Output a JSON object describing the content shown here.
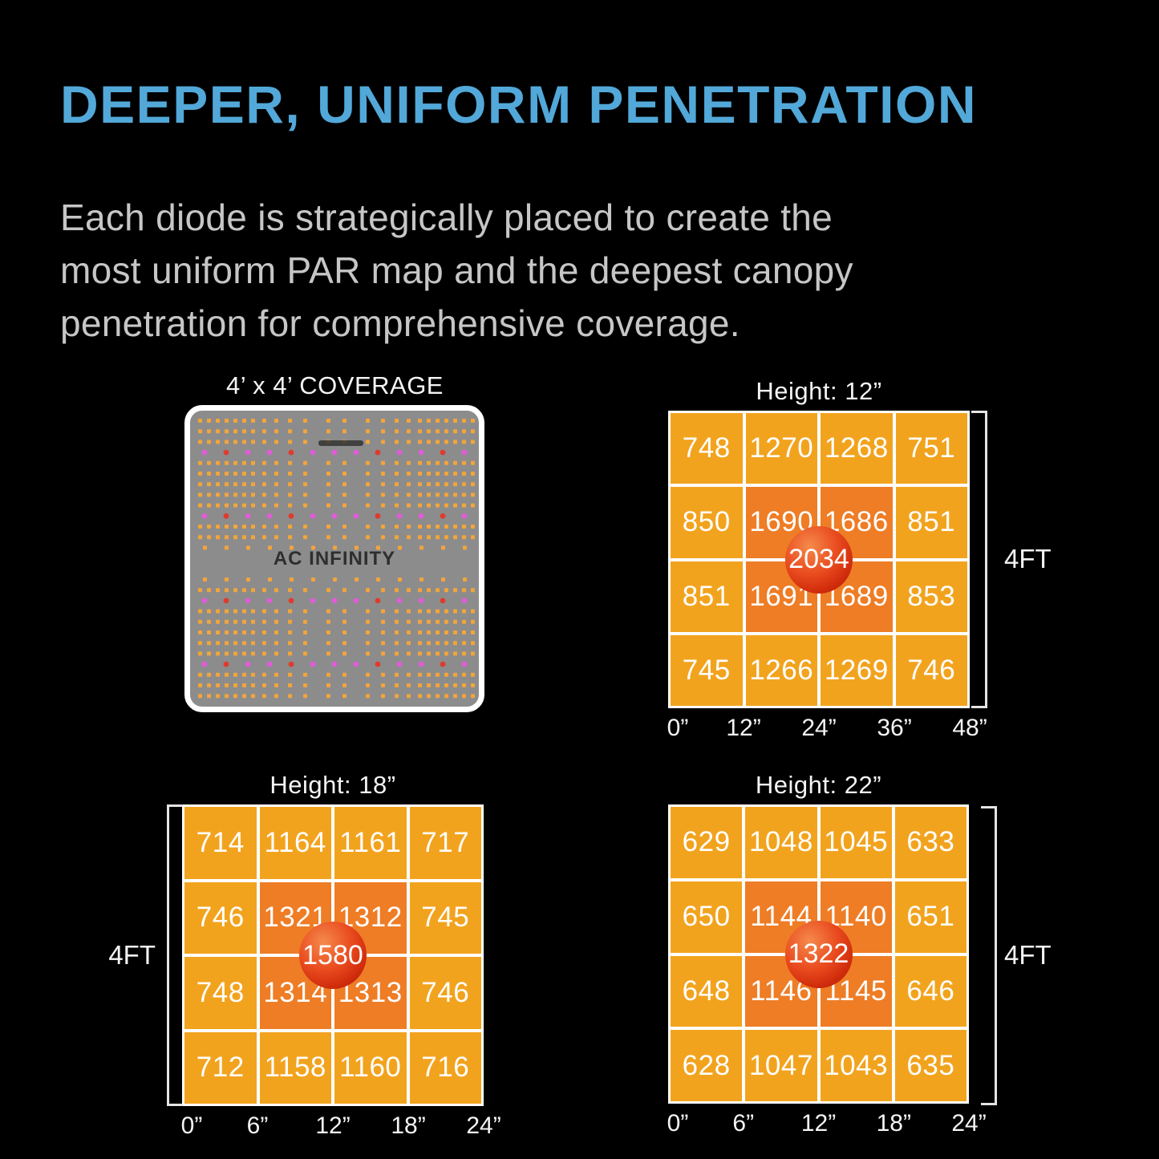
{
  "header": {
    "title": "DEEPER, UNIFORM PENETRATION",
    "description_lines": [
      "Each diode is strategically placed to create the",
      "most uniform PAR map and the deepest canopy",
      "penetration for comprehensive coverage."
    ]
  },
  "board_panel": {
    "title": "4’ x 4’ COVERAGE",
    "brand": "AC INFINITY"
  },
  "colors": {
    "accent_blue": "#52A8D8",
    "body_gray": "#C6C6C6",
    "cell_orange": "#F2A31E",
    "cell_orange_hot": "#EE7D26",
    "ball_red": "#D02C0C",
    "board_gray": "#8C8C8C",
    "diode_orange": "#F3A53A",
    "diode_pink": "#E05CD8",
    "diode_red": "#E03A2C"
  },
  "chart_data": [
    {
      "type": "heatmap",
      "title": "Height: 12”",
      "x_tick_labels": [
        "0”",
        "12”",
        "24”",
        "36”",
        "48”"
      ],
      "side_label": "4FT",
      "bracket_side": "right",
      "values": [
        [
          748,
          1270,
          1268,
          751
        ],
        [
          850,
          1690,
          1686,
          851
        ],
        [
          851,
          1691,
          1689,
          853
        ],
        [
          745,
          1266,
          1269,
          746
        ]
      ],
      "center_value": 2034
    },
    {
      "type": "heatmap",
      "title": "Height: 18”",
      "x_tick_labels": [
        "0”",
        "6”",
        "12”",
        "18”",
        "24”"
      ],
      "side_label": "4FT",
      "bracket_side": "left",
      "values": [
        [
          714,
          1164,
          1161,
          717
        ],
        [
          746,
          1321,
          1312,
          745
        ],
        [
          748,
          1314,
          1313,
          746
        ],
        [
          712,
          1158,
          1160,
          716
        ]
      ],
      "center_value": 1580
    },
    {
      "type": "heatmap",
      "title": "Height: 22”",
      "x_tick_labels": [
        "0”",
        "6”",
        "12”",
        "18”",
        "24”"
      ],
      "side_label": "4FT",
      "bracket_side": "right",
      "values": [
        [
          629,
          1048,
          1045,
          633
        ],
        [
          650,
          1144,
          1140,
          651
        ],
        [
          648,
          1146,
          1145,
          646
        ],
        [
          628,
          1047,
          1043,
          635
        ]
      ],
      "center_value": 1322
    }
  ]
}
